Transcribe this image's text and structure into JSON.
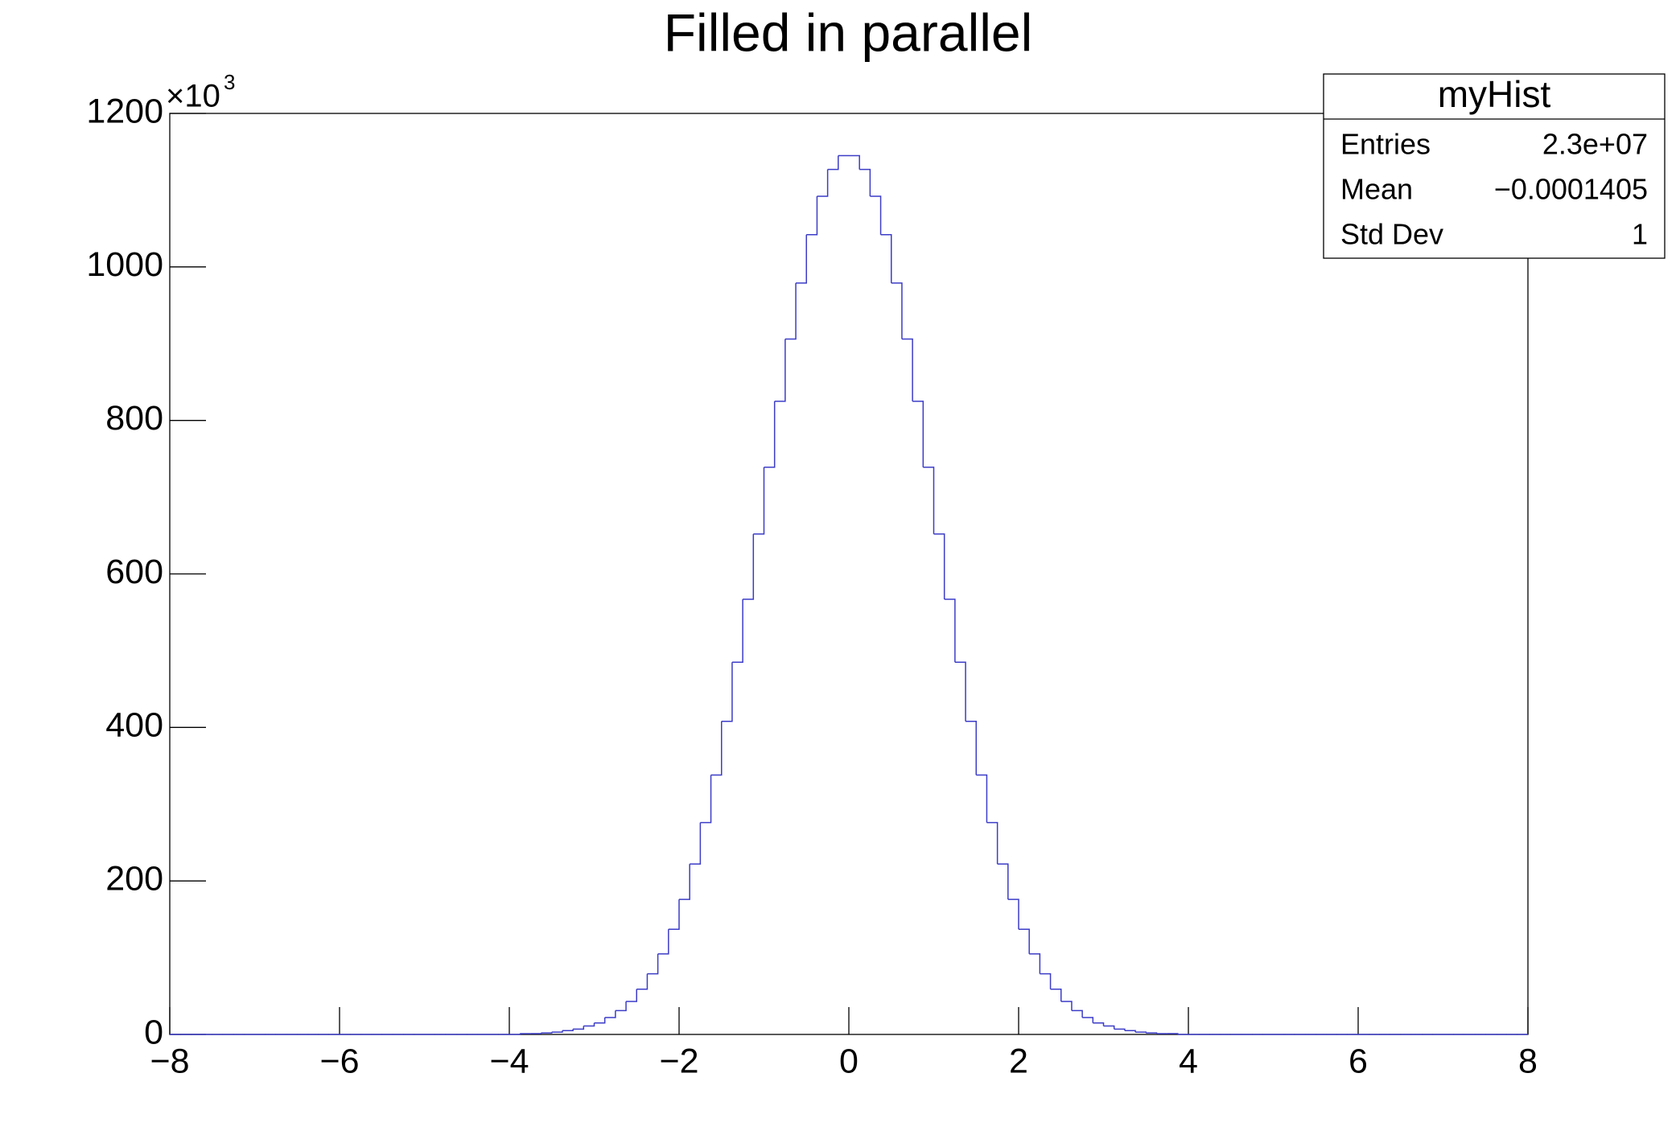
{
  "chart_data": {
    "type": "histogram",
    "title": "Filled in parallel",
    "y_multiplier": "×10",
    "y_multiplier_exp": "3",
    "bins": [
      -8,
      -7.875,
      -7.75,
      -7.625,
      -7.5,
      -7.375,
      -7.25,
      -7.125,
      -7,
      -6.875,
      -6.75,
      -6.625,
      -6.5,
      -6.375,
      -6.25,
      -6.125,
      -6,
      -5.875,
      -5.75,
      -5.625,
      -5.5,
      -5.375,
      -5.25,
      -5.125,
      -5,
      -4.875,
      -4.75,
      -4.625,
      -4.5,
      -4.375,
      -4.25,
      -4.125,
      -4,
      -3.875,
      -3.75,
      -3.625,
      -3.5,
      -3.375,
      -3.25,
      -3.125,
      -3,
      -2.875,
      -2.75,
      -2.625,
      -2.5,
      -2.375,
      -2.25,
      -2.125,
      -2,
      -1.875,
      -1.75,
      -1.625,
      -1.5,
      -1.375,
      -1.25,
      -1.125,
      -1,
      -0.875,
      -0.75,
      -0.625,
      -0.5,
      -0.375,
      -0.25,
      -0.125,
      0,
      0.125,
      0.25,
      0.375,
      0.5,
      0.625,
      0.75,
      0.875,
      1,
      1.125,
      1.25,
      1.375,
      1.5,
      1.625,
      1.75,
      1.875,
      2,
      2.125,
      2.25,
      2.375,
      2.5,
      2.625,
      2.75,
      2.875,
      3,
      3.125,
      3.25,
      3.375,
      3.5,
      3.625,
      3.75,
      3.875,
      4,
      4.125,
      4.25,
      4.375,
      4.5,
      4.625,
      4.75,
      4.875,
      5,
      5.125,
      5.25,
      5.375,
      5.5,
      5.625,
      5.75,
      5.875,
      6,
      6.125,
      6.25,
      6.375,
      6.5,
      6.625,
      6.75,
      6.875,
      7,
      7.125,
      7.25,
      7.375,
      7.5,
      7.625,
      7.75,
      7.875,
      8
    ],
    "counts": [
      0,
      0,
      0,
      0,
      0,
      0,
      0,
      0,
      0,
      0,
      0,
      0,
      0,
      0,
      0,
      0,
      0,
      0,
      0,
      0,
      0,
      0,
      0,
      0,
      0,
      0,
      0,
      0,
      0,
      0,
      0,
      0,
      0,
      1,
      1,
      2,
      3,
      5,
      7,
      11,
      15,
      22,
      31,
      43,
      59,
      79,
      105,
      137,
      176,
      222,
      276,
      338,
      408,
      485,
      567,
      652,
      739,
      825,
      906,
      979,
      1042,
      1092,
      1127,
      1145,
      1145,
      1127,
      1092,
      1042,
      979,
      906,
      825,
      739,
      652,
      567,
      485,
      408,
      338,
      276,
      222,
      176,
      137,
      105,
      79,
      59,
      43,
      31,
      22,
      15,
      11,
      7,
      5,
      3,
      2,
      1,
      1,
      0,
      0,
      0,
      0,
      0,
      0,
      0,
      0,
      0,
      0,
      0,
      0,
      0,
      0,
      0,
      0,
      0,
      0,
      0,
      0,
      0,
      0,
      0,
      0,
      0,
      0,
      0,
      0,
      0,
      0,
      0,
      0,
      0
    ],
    "color": "#3c3cc8",
    "xlim": [
      -8,
      8
    ],
    "xticks": [
      {
        "value": -8,
        "label": "−8"
      },
      {
        "value": -6,
        "label": "−6"
      },
      {
        "value": -4,
        "label": "−4"
      },
      {
        "value": -2,
        "label": "−2"
      },
      0,
      2,
      4,
      6,
      8
    ],
    "ylim": [
      0,
      1200
    ],
    "yticks": [
      0,
      200,
      400,
      600,
      800,
      1000,
      1200
    ],
    "stats": {
      "title": "myHist",
      "rows": [
        [
          "Entries",
          "2.3e+07"
        ],
        [
          "Mean",
          "−0.0001405"
        ],
        [
          "Std Dev",
          "1"
        ]
      ]
    }
  }
}
